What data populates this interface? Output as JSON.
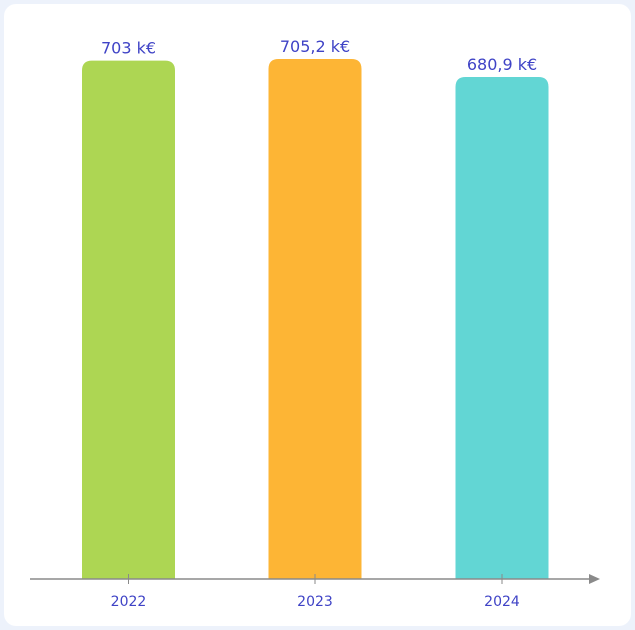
{
  "chart_data": {
    "type": "bar",
    "categories": [
      "2022",
      "2023",
      "2024"
    ],
    "values": [
      703,
      705.2,
      680.9
    ],
    "value_labels": [
      "703 k€",
      "705,2 k€",
      "680,9 k€"
    ],
    "colors": [
      "#add653",
      "#fdb535",
      "#62d6d4"
    ],
    "title": "",
    "xlabel": "",
    "ylabel": "",
    "ylim": [
      0,
      750
    ],
    "grid": false,
    "legend": "none"
  }
}
